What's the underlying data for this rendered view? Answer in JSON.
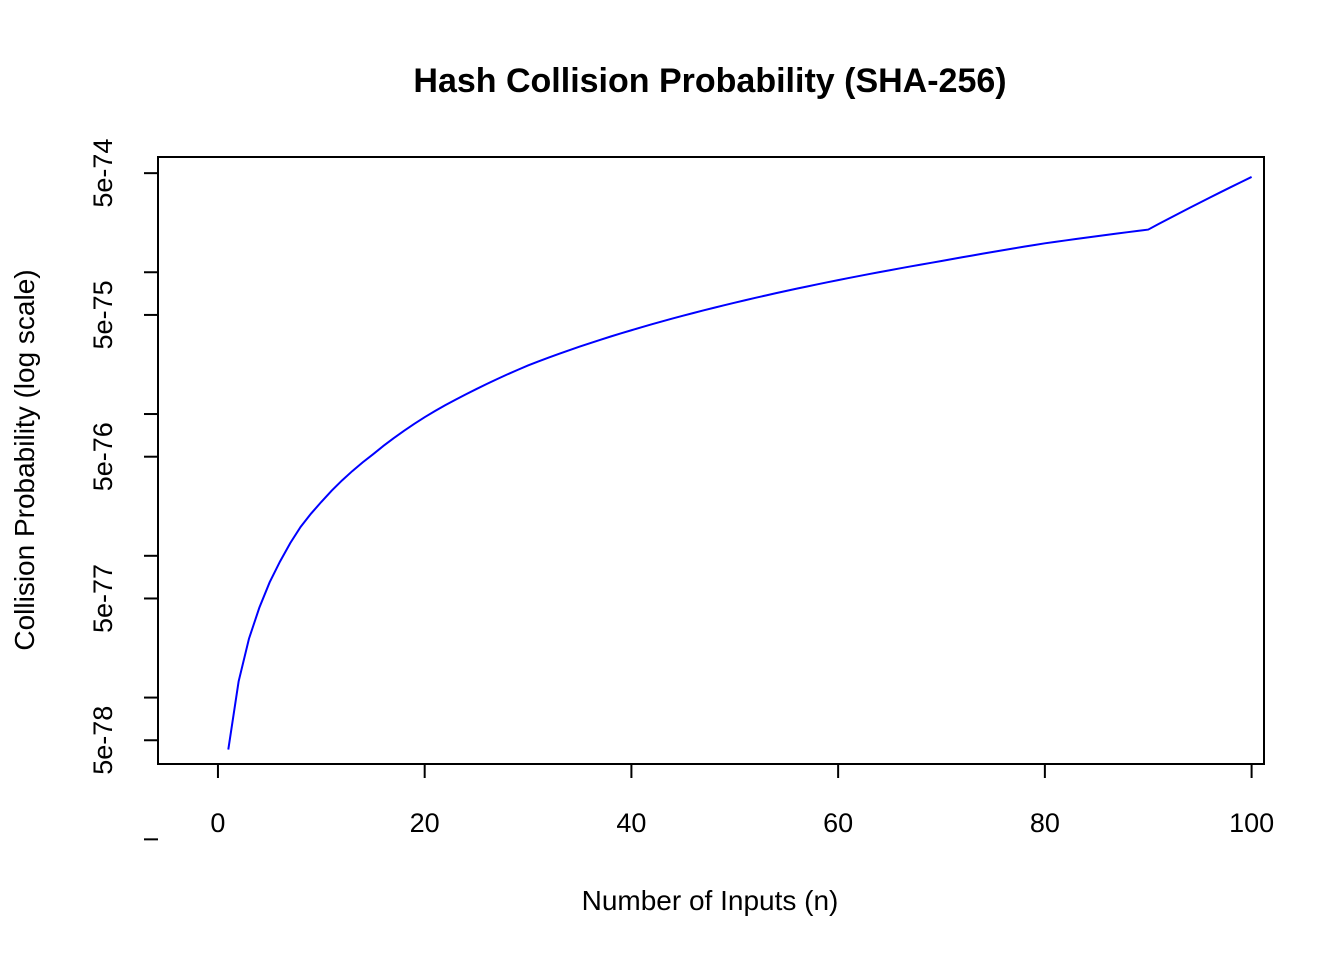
{
  "chart_data": {
    "type": "line",
    "title": "Hash Collision Probability (SHA-256)",
    "xlabel": "Number of Inputs (n)",
    "ylabel": "Collision Probability (log scale)",
    "x_ticks": [
      0,
      20,
      40,
      60,
      80,
      100
    ],
    "y_ticks": [
      "1e-78",
      "5e-78",
      "1e-77",
      "5e-77",
      "1e-76",
      "5e-76",
      "1e-75",
      "5e-75",
      "1e-74",
      "5e-74"
    ],
    "y_tick_labels": [
      "5e-78",
      "5e-77",
      "5e-76",
      "5e-75",
      "5e-74"
    ],
    "xlim": [
      -5.8,
      101.2
    ],
    "ylim": [
      "3.4e-78",
      "6.5e-74"
    ],
    "y_scale": "log",
    "grid": false,
    "legend": "none",
    "series": [
      {
        "color": "#0000ff",
        "x": [
          1,
          2,
          3,
          4,
          5,
          6,
          8,
          10,
          12,
          15,
          20,
          25,
          30,
          40,
          50,
          60,
          70,
          80,
          90,
          100
        ],
        "y": [
          "4.3e-78",
          "1.3e-77",
          "2.6e-77",
          "4.3e-77",
          "6.5e-77",
          "9.1e-77",
          "1.6e-76",
          "2.4e-76",
          "3.4e-76",
          "5.2e-76",
          "9.5e-76",
          "1.5e-75",
          "2.2e-75",
          "3.9e-75",
          "6.1e-75",
          "8.8e-75",
          "1.2e-74",
          "1.6e-74",
          "2.0e-74",
          "4.7e-74"
        ]
      }
    ]
  }
}
